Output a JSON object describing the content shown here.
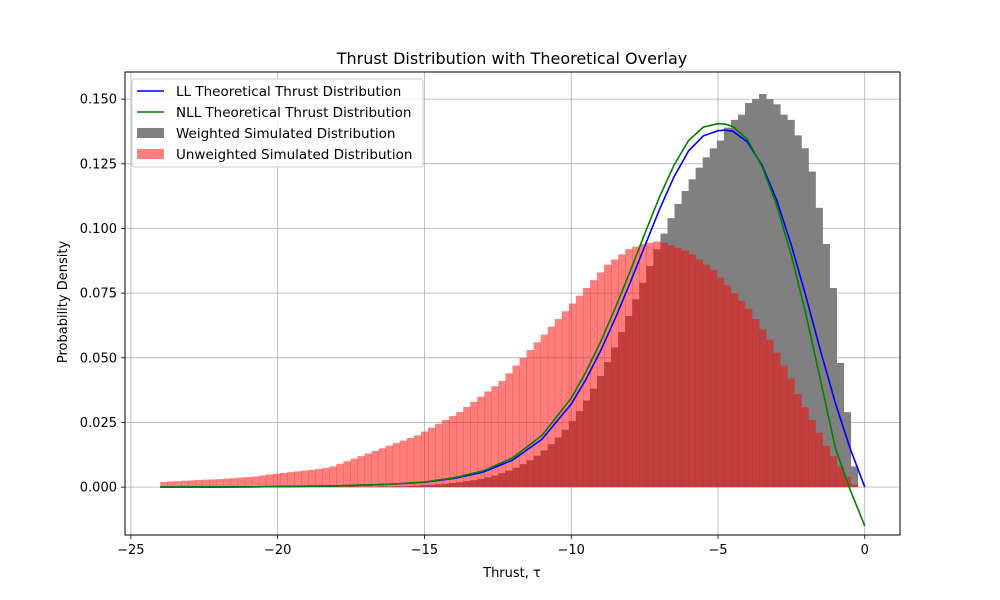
{
  "chart_data": {
    "type": "histogram+line",
    "title": "Thrust Distribution with Theoretical Overlay",
    "xlabel": "Thrust, τ",
    "ylabel": "Probability Density",
    "xlim": [
      -25.2,
      1.2
    ],
    "ylim": [
      -0.0185,
      0.1605
    ],
    "x_ticks": [
      -25,
      -20,
      -15,
      -10,
      -5,
      0
    ],
    "x_tick_labels": [
      "−25",
      "−20",
      "−15",
      "−10",
      "−5",
      "0"
    ],
    "y_ticks": [
      0.0,
      0.025,
      0.05,
      0.075,
      0.1,
      0.125,
      0.15
    ],
    "y_tick_labels": [
      "0.000",
      "0.025",
      "0.050",
      "0.075",
      "0.100",
      "0.125",
      "0.150"
    ],
    "grid": true,
    "legend_position": "upper-left",
    "legend": [
      {
        "label": "LL Theoretical Thrust Distribution",
        "kind": "line",
        "color": "#0000ff"
      },
      {
        "label": "NLL Theoretical Thrust Distribution",
        "kind": "line",
        "color": "#008000"
      },
      {
        "label": "Weighted Simulated Distribution",
        "kind": "patch",
        "color": "#808080"
      },
      {
        "label": "Unweighted Simulated Distribution",
        "kind": "patch",
        "color": "#ff0000",
        "alpha": 0.5
      }
    ],
    "bins": {
      "start": -24.0,
      "end": -0.24,
      "count": 99,
      "width": 0.24
    },
    "series": [
      {
        "name": "Weighted Simulated Distribution",
        "kind": "histogram",
        "color": "#808080",
        "alpha": 1.0,
        "values": [
          0.0001,
          0.0001,
          0.0001,
          0.0001,
          0.0001,
          0.0001,
          0.0001,
          0.0001,
          0.0001,
          0.0001,
          0.0001,
          0.0001,
          0.0001,
          0.0001,
          0.0001,
          0.0001,
          0.0001,
          0.0001,
          0.0001,
          0.0001,
          0.0001,
          0.0001,
          0.0001,
          0.0001,
          0.0001,
          0.0001,
          0.0001,
          0.0002,
          0.0002,
          0.0002,
          0.0002,
          0.0003,
          0.0003,
          0.0004,
          0.0004,
          0.0005,
          0.0006,
          0.0008,
          0.0009,
          0.0011,
          0.0013,
          0.0016,
          0.0019,
          0.0023,
          0.0027,
          0.0032,
          0.0038,
          0.0045,
          0.0054,
          0.0064,
          0.0075,
          0.0089,
          0.0104,
          0.0122,
          0.0142,
          0.0166,
          0.0192,
          0.0222,
          0.0256,
          0.0294,
          0.0335,
          0.0381,
          0.043,
          0.0484,
          0.054,
          0.06,
          0.0662,
          0.0726,
          0.079,
          0.0855,
          0.092,
          0.098,
          0.104,
          0.1095,
          0.1145,
          0.119,
          0.1235,
          0.1275,
          0.131,
          0.134,
          0.139,
          0.142,
          0.144,
          0.1485,
          0.15,
          0.152,
          0.15,
          0.148,
          0.144,
          0.142,
          0.136,
          0.131,
          0.122,
          0.108,
          0.094,
          0.077,
          0.048,
          0.029,
          0.008
        ]
      },
      {
        "name": "Unweighted Simulated Distribution",
        "kind": "histogram",
        "color": "#ff0000",
        "alpha": 0.5,
        "values": [
          0.002,
          0.0022,
          0.0023,
          0.0025,
          0.0026,
          0.0028,
          0.0029,
          0.003,
          0.0031,
          0.0033,
          0.0035,
          0.0037,
          0.0039,
          0.0041,
          0.0045,
          0.0049,
          0.0052,
          0.0055,
          0.0058,
          0.0061,
          0.0064,
          0.0067,
          0.007,
          0.0074,
          0.008,
          0.009,
          0.01,
          0.011,
          0.012,
          0.013,
          0.014,
          0.015,
          0.016,
          0.017,
          0.018,
          0.019,
          0.02,
          0.0215,
          0.023,
          0.0245,
          0.026,
          0.0275,
          0.029,
          0.031,
          0.033,
          0.035,
          0.037,
          0.039,
          0.041,
          0.044,
          0.047,
          0.05,
          0.053,
          0.056,
          0.059,
          0.062,
          0.065,
          0.068,
          0.071,
          0.074,
          0.077,
          0.08,
          0.083,
          0.086,
          0.088,
          0.09,
          0.092,
          0.093,
          0.094,
          0.0945,
          0.095,
          0.0945,
          0.0935,
          0.0925,
          0.0915,
          0.09,
          0.088,
          0.086,
          0.084,
          0.081,
          0.078,
          0.075,
          0.072,
          0.069,
          0.065,
          0.061,
          0.057,
          0.052,
          0.047,
          0.042,
          0.036,
          0.031,
          0.026,
          0.021,
          0.016,
          0.012,
          0.008,
          0.004,
          0.001
        ]
      },
      {
        "name": "LL Theoretical Thrust Distribution",
        "kind": "line",
        "color": "#0000ff",
        "x": [
          -24,
          -22,
          -20,
          -18,
          -17,
          -16,
          -15,
          -14,
          -13,
          -12,
          -11,
          -10,
          -9.5,
          -9,
          -8.5,
          -8,
          -7.5,
          -7,
          -6.5,
          -6,
          -5.5,
          -5,
          -4.75,
          -4.5,
          -4,
          -3.5,
          -3,
          -2.5,
          -2,
          -1.5,
          -1,
          -0.5,
          0
        ],
        "y": [
          0.0,
          0.0,
          0.0002,
          0.0005,
          0.0008,
          0.0012,
          0.0019,
          0.0034,
          0.0058,
          0.0104,
          0.0185,
          0.0321,
          0.0416,
          0.0527,
          0.0652,
          0.0788,
          0.093,
          0.1072,
          0.12,
          0.13,
          0.1358,
          0.1378,
          0.138,
          0.1376,
          0.1335,
          0.1245,
          0.111,
          0.0935,
          0.0735,
          0.0525,
          0.0325,
          0.015,
          0.0
        ]
      },
      {
        "name": "NLL Theoretical Thrust Distribution",
        "kind": "line",
        "color": "#008000",
        "x": [
          -24,
          -22,
          -20,
          -18,
          -17,
          -16,
          -15,
          -14,
          -13,
          -12,
          -11,
          -10,
          -9.5,
          -9,
          -8.5,
          -8,
          -7.5,
          -7,
          -6.5,
          -6,
          -5.5,
          -5,
          -4.75,
          -4.5,
          -4,
          -3.5,
          -3,
          -2.5,
          -2,
          -1.5,
          -1,
          -0.5,
          0
        ],
        "y": [
          0.0,
          0.0,
          0.0002,
          0.0005,
          0.0008,
          0.0012,
          0.002,
          0.0036,
          0.0063,
          0.0113,
          0.02,
          0.0344,
          0.0445,
          0.0562,
          0.0692,
          0.0832,
          0.0978,
          0.112,
          0.1245,
          0.134,
          0.1392,
          0.1405,
          0.1403,
          0.1395,
          0.1345,
          0.124,
          0.109,
          0.0895,
          0.0665,
          0.041,
          0.015,
          -0.001,
          -0.015
        ]
      }
    ]
  }
}
